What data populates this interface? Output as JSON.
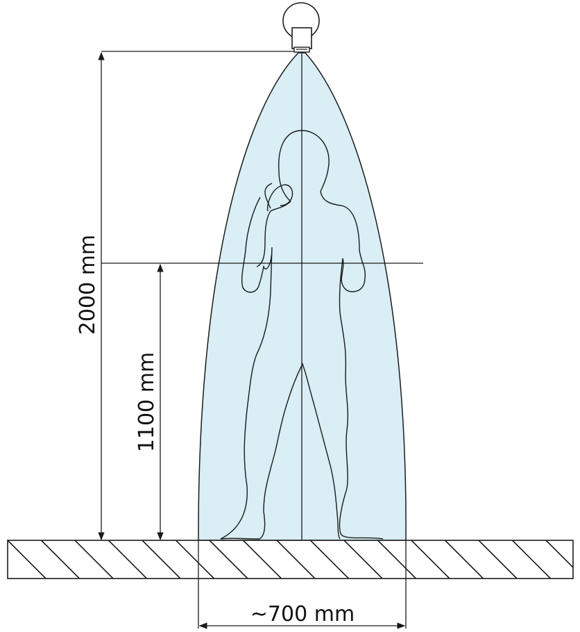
{
  "labels": {
    "total_height": "2000 mm",
    "hand_height": "1100 mm",
    "spray_width": "~700 mm"
  },
  "colors": {
    "spray_fill": "#d9eef5",
    "line": "#1a1a1a",
    "background": "#ffffff"
  },
  "icons": {
    "shower_head": "shower-head-icon",
    "person": "person-silhouette-icon",
    "floor": "hatched-floor-icon"
  }
}
